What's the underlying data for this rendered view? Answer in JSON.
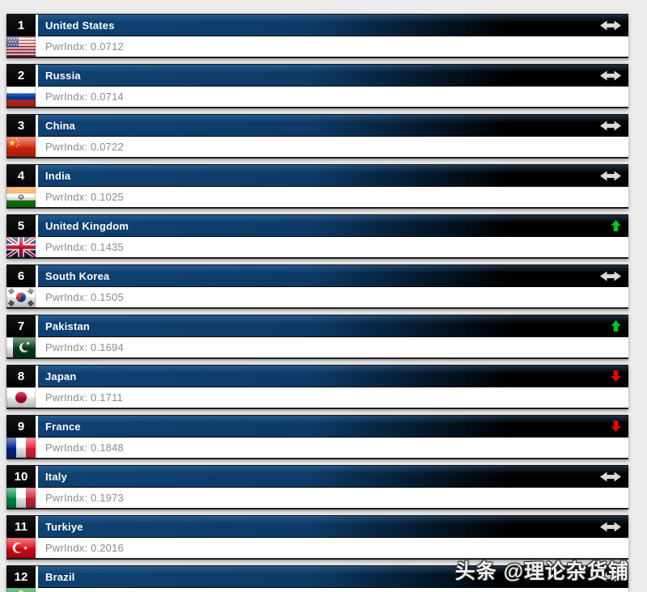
{
  "page": {
    "background": "#ebebeb",
    "watermark": "头条 @理论杂货铺"
  },
  "colors": {
    "bar_blue": "#0d3a66",
    "bar_black": "#000000",
    "rank_box": "#000000",
    "pwrindx_text": "#8a8a8a",
    "arrow_same": "#d9d9d9",
    "arrow_up": "#00c42a",
    "arrow_down": "#ee0000"
  },
  "icons": {
    "same": "no-change-arrow-icon",
    "up": "rank-up-arrow-icon",
    "down": "rank-down-arrow-icon"
  },
  "list": {
    "pwrindx_label": "PwrIndx:",
    "rows": [
      {
        "rank": "1",
        "country": "United States",
        "flag": "us",
        "pwrindx": "0.0712",
        "movement": "same"
      },
      {
        "rank": "2",
        "country": "Russia",
        "flag": "ru",
        "pwrindx": "0.0714",
        "movement": "same"
      },
      {
        "rank": "3",
        "country": "China",
        "flag": "cn",
        "pwrindx": "0.0722",
        "movement": "same"
      },
      {
        "rank": "4",
        "country": "India",
        "flag": "in",
        "pwrindx": "0.1025",
        "movement": "same"
      },
      {
        "rank": "5",
        "country": "United Kingdom",
        "flag": "gb",
        "pwrindx": "0.1435",
        "movement": "up"
      },
      {
        "rank": "6",
        "country": "South Korea",
        "flag": "kr",
        "pwrindx": "0.1505",
        "movement": "same"
      },
      {
        "rank": "7",
        "country": "Pakistan",
        "flag": "pk",
        "pwrindx": "0.1694",
        "movement": "up"
      },
      {
        "rank": "8",
        "country": "Japan",
        "flag": "jp",
        "pwrindx": "0.1711",
        "movement": "down"
      },
      {
        "rank": "9",
        "country": "France",
        "flag": "fr",
        "pwrindx": "0.1848",
        "movement": "down"
      },
      {
        "rank": "10",
        "country": "Italy",
        "flag": "it",
        "pwrindx": "0.1973",
        "movement": "same"
      },
      {
        "rank": "11",
        "country": "Turkiye",
        "flag": "tr",
        "pwrindx": "0.2016",
        "movement": "same"
      },
      {
        "rank": "12",
        "country": "Brazil",
        "flag": "br",
        "pwrindx": "",
        "movement": "same"
      }
    ]
  }
}
